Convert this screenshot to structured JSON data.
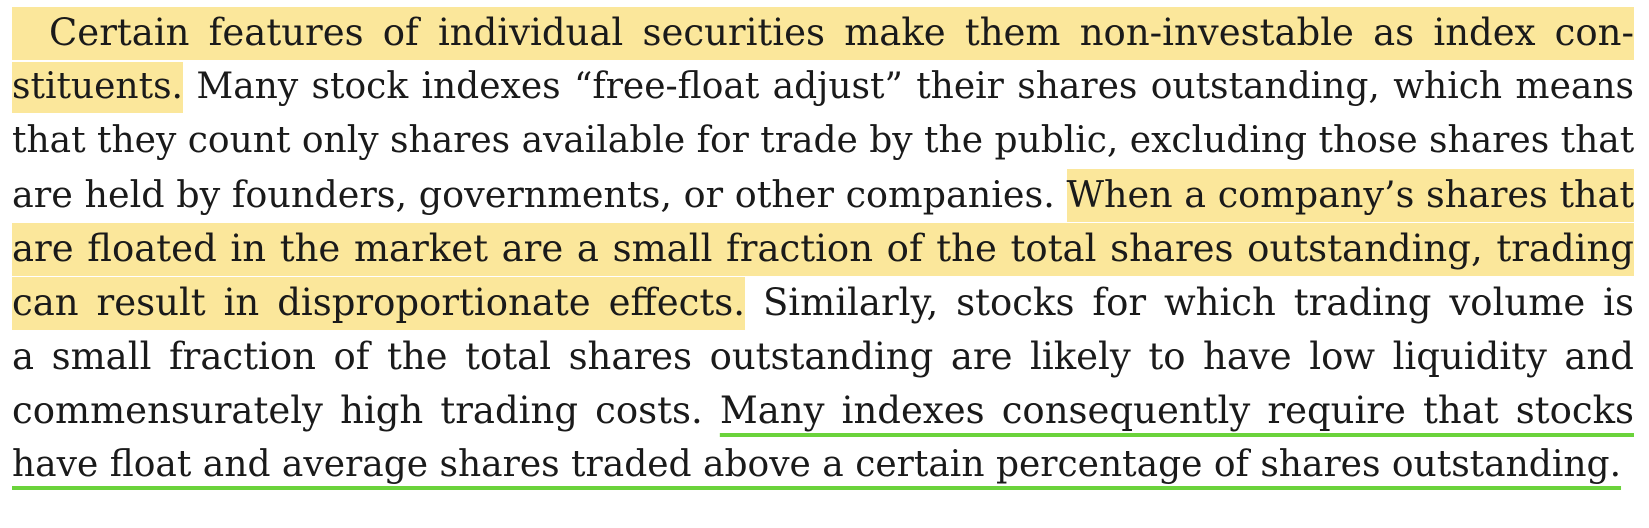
{
  "lines": [
    [
      {
        "text": " Certain features of individual securities make them non-investable as index con-",
        "style": "highlight"
      }
    ],
    [
      {
        "text": "stituents.",
        "style": "highlight"
      },
      {
        "text": " Many stock indexes “free-float adjust” their shares outstanding, which means",
        "style": "plain"
      }
    ],
    [
      {
        "text": "that they count only shares available for trade by the public, excluding those shares that",
        "style": "plain"
      }
    ],
    [
      {
        "text": "are held by founders, governments, or other companies. ",
        "style": "plain"
      },
      {
        "text": "When a company’s shares that",
        "style": "highlight"
      }
    ],
    [
      {
        "text": "are floated in the market are a small fraction of the total shares outstanding, trading",
        "style": "highlight"
      }
    ],
    [
      {
        "text": "can result in disproportionate effects.",
        "style": "highlight"
      },
      {
        "text": " Similarly, stocks for which trading volume is",
        "style": "plain"
      }
    ],
    [
      {
        "text": "a small fraction of the total shares outstanding are likely to have low liquidity and",
        "style": "plain"
      }
    ],
    [
      {
        "text": "commensurately high trading costs. ",
        "style": "plain"
      },
      {
        "text": "Many indexes consequently require that stocks",
        "style": "underline"
      }
    ],
    [
      {
        "text": "have float and average shares traded above a certain percentage of shares outstanding.",
        "style": "underline"
      }
    ]
  ],
  "colors": {
    "highlight": "#fbe79b",
    "underline": "#6bd33b",
    "text": "#1a1a1a"
  }
}
